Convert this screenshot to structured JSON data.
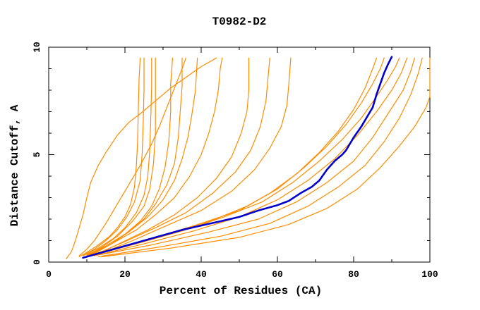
{
  "window": {
    "background": "#FFFFFF"
  },
  "chart_data": {
    "type": "line",
    "title": "T0982-D2",
    "xlabel": "Percent of Residues (CA)",
    "ylabel": "Distance Cutoff, A",
    "xlim": [
      0,
      100
    ],
    "ylim": [
      0,
      10
    ],
    "x_major_ticks": [
      0,
      20,
      40,
      60,
      80,
      100
    ],
    "x_minor_ticks": [
      10,
      30,
      50,
      70,
      90
    ],
    "y_major_ticks": [
      0,
      5,
      10
    ],
    "y_minor_ticks": [
      1,
      2,
      3,
      4,
      6,
      7,
      8,
      9
    ],
    "grid": false,
    "legend_position": "none",
    "frame_color": "#000000",
    "model_line_color": "#FF8C00",
    "highlight_line_color": "#0000CD",
    "series": [
      {
        "name": "highlighted-model",
        "color": "#0000CD",
        "width": 2.6,
        "points": [
          [
            9,
            0.2
          ],
          [
            12,
            0.35
          ],
          [
            16,
            0.55
          ],
          [
            20,
            0.75
          ],
          [
            25,
            1.0
          ],
          [
            30,
            1.25
          ],
          [
            35,
            1.5
          ],
          [
            40,
            1.7
          ],
          [
            45,
            1.9
          ],
          [
            50,
            2.1
          ],
          [
            55,
            2.4
          ],
          [
            60,
            2.65
          ],
          [
            63,
            2.85
          ],
          [
            66,
            3.2
          ],
          [
            69,
            3.5
          ],
          [
            71,
            3.8
          ],
          [
            73,
            4.3
          ],
          [
            75,
            4.7
          ],
          [
            77,
            5.0
          ],
          [
            78,
            5.2
          ],
          [
            80,
            5.8
          ],
          [
            82,
            6.3
          ],
          [
            84,
            6.9
          ],
          [
            85,
            7.2
          ],
          [
            86,
            7.8
          ],
          [
            87,
            8.3
          ],
          [
            88,
            8.8
          ],
          [
            89,
            9.2
          ],
          [
            90,
            9.55
          ]
        ]
      },
      {
        "name": "line-01",
        "color": "#FF8C00",
        "width": 1.2,
        "points": [
          [
            4.6,
            0.15
          ],
          [
            6,
            0.5
          ],
          [
            7,
            1.0
          ],
          [
            8,
            1.6
          ],
          [
            9,
            2.2
          ],
          [
            10,
            3.0
          ],
          [
            11,
            3.7
          ],
          [
            13,
            4.5
          ],
          [
            15,
            5.1
          ],
          [
            18,
            5.9
          ],
          [
            21,
            6.5
          ],
          [
            24,
            6.9
          ],
          [
            28,
            7.5
          ],
          [
            32,
            8.1
          ],
          [
            36,
            8.6
          ],
          [
            40,
            9.1
          ],
          [
            44,
            9.5
          ]
        ]
      },
      {
        "name": "line-02",
        "color": "#FF8C00",
        "width": 1.2,
        "points": [
          [
            8,
            0.25
          ],
          [
            10,
            0.45
          ],
          [
            13,
            0.8
          ],
          [
            16,
            1.2
          ],
          [
            18,
            1.6
          ],
          [
            20,
            2.1
          ],
          [
            21.5,
            2.7
          ],
          [
            22.5,
            3.5
          ],
          [
            23,
            4.5
          ],
          [
            23.3,
            5.5
          ],
          [
            23.5,
            7.0
          ],
          [
            23.7,
            8.5
          ],
          [
            24,
            9.5
          ]
        ]
      },
      {
        "name": "line-03",
        "color": "#FF8C00",
        "width": 1.2,
        "points": [
          [
            9,
            0.3
          ],
          [
            12,
            0.6
          ],
          [
            15,
            1.0
          ],
          [
            18,
            1.5
          ],
          [
            20.5,
            2.1
          ],
          [
            22.5,
            2.8
          ],
          [
            24,
            3.8
          ],
          [
            24.5,
            5.0
          ],
          [
            24.8,
            6.5
          ],
          [
            25,
            8.0
          ],
          [
            25,
            9.5
          ]
        ]
      },
      {
        "name": "line-04",
        "color": "#FF8C00",
        "width": 1.2,
        "points": [
          [
            9,
            0.3
          ],
          [
            13,
            0.65
          ],
          [
            17,
            1.1
          ],
          [
            20,
            1.6
          ],
          [
            23,
            2.3
          ],
          [
            25,
            3.1
          ],
          [
            26,
            4.0
          ],
          [
            26.5,
            5.2
          ],
          [
            26.8,
            6.8
          ],
          [
            27,
            8.2
          ],
          [
            27,
            9.5
          ]
        ]
      },
      {
        "name": "line-05",
        "color": "#FF8C00",
        "width": 1.2,
        "points": [
          [
            10,
            0.3
          ],
          [
            14,
            0.7
          ],
          [
            18,
            1.2
          ],
          [
            22,
            1.9
          ],
          [
            25,
            2.6
          ],
          [
            26.5,
            3.4
          ],
          [
            27.5,
            4.6
          ],
          [
            28,
            6.0
          ],
          [
            28,
            7.5
          ],
          [
            28,
            9.5
          ]
        ]
      },
      {
        "name": "line-06",
        "color": "#FF8C00",
        "width": 1.2,
        "points": [
          [
            10,
            0.3
          ],
          [
            15,
            0.75
          ],
          [
            20,
            1.3
          ],
          [
            24,
            1.9
          ],
          [
            27,
            2.6
          ],
          [
            29,
            3.4
          ],
          [
            30.5,
            4.4
          ],
          [
            31.5,
            5.6
          ],
          [
            32,
            7.0
          ],
          [
            32,
            8.3
          ],
          [
            32.5,
            9.5
          ]
        ]
      },
      {
        "name": "line-07",
        "color": "#FF8C00",
        "width": 1.2,
        "points": [
          [
            10,
            0.35
          ],
          [
            16,
            0.8
          ],
          [
            21,
            1.4
          ],
          [
            25,
            2.0
          ],
          [
            28,
            2.7
          ],
          [
            31,
            3.6
          ],
          [
            33,
            4.6
          ],
          [
            34,
            5.8
          ],
          [
            34.5,
            7.0
          ],
          [
            35,
            8.2
          ],
          [
            35,
            9.5
          ]
        ]
      },
      {
        "name": "line-08",
        "color": "#FF8C00",
        "width": 1.2,
        "points": [
          [
            8,
            0.3
          ],
          [
            10,
            0.6
          ],
          [
            12,
            1.0
          ],
          [
            15,
            1.8
          ],
          [
            18,
            2.7
          ],
          [
            21,
            3.6
          ],
          [
            24,
            4.5
          ],
          [
            27,
            5.5
          ],
          [
            29,
            6.3
          ],
          [
            31,
            7.2
          ],
          [
            33,
            8.1
          ],
          [
            35,
            9.0
          ],
          [
            36,
            9.5
          ]
        ]
      },
      {
        "name": "line-09",
        "color": "#FF8C00",
        "width": 1.2,
        "points": [
          [
            11,
            0.3
          ],
          [
            16,
            0.8
          ],
          [
            21,
            1.4
          ],
          [
            26,
            2.1
          ],
          [
            30,
            2.9
          ],
          [
            33,
            3.8
          ],
          [
            35,
            4.8
          ],
          [
            36.5,
            5.8
          ],
          [
            37.5,
            6.8
          ],
          [
            38.5,
            8.0
          ],
          [
            39,
            9.5
          ]
        ]
      },
      {
        "name": "line-10",
        "color": "#FF8C00",
        "width": 1.2,
        "points": [
          [
            11,
            0.35
          ],
          [
            17,
            0.9
          ],
          [
            23,
            1.5
          ],
          [
            28,
            2.2
          ],
          [
            33,
            3.0
          ],
          [
            37,
            4.0
          ],
          [
            40,
            5.0
          ],
          [
            42,
            6.0
          ],
          [
            43.5,
            7.0
          ],
          [
            44.5,
            8.0
          ],
          [
            45,
            9.0
          ],
          [
            45.5,
            9.5
          ]
        ]
      },
      {
        "name": "line-11",
        "color": "#FF8C00",
        "width": 1.2,
        "points": [
          [
            12,
            0.3
          ],
          [
            19,
            0.9
          ],
          [
            26,
            1.5
          ],
          [
            33,
            2.2
          ],
          [
            39,
            3.0
          ],
          [
            44,
            3.9
          ],
          [
            48,
            4.9
          ],
          [
            50.5,
            6.0
          ],
          [
            52,
            7.0
          ],
          [
            52.5,
            8.0
          ],
          [
            52.5,
            9.5
          ]
        ]
      },
      {
        "name": "line-12",
        "color": "#FF8C00",
        "width": 1.2,
        "points": [
          [
            12,
            0.35
          ],
          [
            20,
            0.95
          ],
          [
            28,
            1.6
          ],
          [
            36,
            2.3
          ],
          [
            43,
            3.2
          ],
          [
            49,
            4.2
          ],
          [
            53,
            5.2
          ],
          [
            55.5,
            6.3
          ],
          [
            57,
            7.5
          ],
          [
            57.5,
            8.5
          ],
          [
            58,
            9.5
          ]
        ]
      },
      {
        "name": "line-13",
        "color": "#FF8C00",
        "width": 1.2,
        "points": [
          [
            13,
            0.35
          ],
          [
            22,
            1.0
          ],
          [
            31,
            1.7
          ],
          [
            40,
            2.4
          ],
          [
            48,
            3.3
          ],
          [
            54,
            4.3
          ],
          [
            58,
            5.3
          ],
          [
            61,
            6.3
          ],
          [
            62.5,
            7.3
          ],
          [
            63,
            8.3
          ],
          [
            63.5,
            9.5
          ]
        ]
      },
      {
        "name": "line-14",
        "color": "#FF8C00",
        "width": 1.2,
        "points": [
          [
            10,
            0.3
          ],
          [
            20,
            0.75
          ],
          [
            30,
            1.25
          ],
          [
            40,
            1.8
          ],
          [
            50,
            2.4
          ],
          [
            58,
            3.2
          ],
          [
            65,
            4.1
          ],
          [
            71,
            5.1
          ],
          [
            76,
            6.1
          ],
          [
            80,
            7.1
          ],
          [
            83,
            8.1
          ],
          [
            85,
            9.0
          ],
          [
            86,
            9.5
          ]
        ]
      },
      {
        "name": "line-15",
        "color": "#FF8C00",
        "width": 1.2,
        "points": [
          [
            10,
            0.3
          ],
          [
            21,
            0.8
          ],
          [
            32,
            1.35
          ],
          [
            43,
            1.95
          ],
          [
            52,
            2.6
          ],
          [
            60,
            3.4
          ],
          [
            67,
            4.4
          ],
          [
            73,
            5.4
          ],
          [
            78,
            6.4
          ],
          [
            82,
            7.4
          ],
          [
            85,
            8.3
          ],
          [
            87,
            9.0
          ],
          [
            88,
            9.5
          ]
        ]
      },
      {
        "name": "line-16",
        "color": "#FF8C00",
        "width": 1.2,
        "points": [
          [
            11,
            0.3
          ],
          [
            23,
            0.85
          ],
          [
            35,
            1.45
          ],
          [
            46,
            2.1
          ],
          [
            56,
            2.8
          ],
          [
            64,
            3.7
          ],
          [
            71,
            4.7
          ],
          [
            77,
            5.7
          ],
          [
            82,
            6.7
          ],
          [
            86,
            7.7
          ],
          [
            89,
            8.5
          ],
          [
            91,
            9.1
          ],
          [
            92,
            9.5
          ]
        ]
      },
      {
        "name": "line-17",
        "color": "#FF8C00",
        "width": 1.2,
        "points": [
          [
            12,
            0.3
          ],
          [
            25,
            0.85
          ],
          [
            38,
            1.45
          ],
          [
            50,
            2.1
          ],
          [
            60,
            2.9
          ],
          [
            68,
            3.8
          ],
          [
            75,
            4.8
          ],
          [
            81,
            5.9
          ],
          [
            86,
            7.0
          ],
          [
            90,
            8.0
          ],
          [
            92.5,
            8.8
          ],
          [
            94,
            9.5
          ]
        ]
      },
      {
        "name": "line-18",
        "color": "#FF8C00",
        "width": 1.2,
        "points": [
          [
            12,
            0.3
          ],
          [
            27,
            0.8
          ],
          [
            42,
            1.4
          ],
          [
            55,
            2.0
          ],
          [
            65,
            2.8
          ],
          [
            73,
            3.7
          ],
          [
            80,
            4.7
          ],
          [
            85,
            5.8
          ],
          [
            89,
            6.9
          ],
          [
            93,
            8.0
          ],
          [
            95,
            8.9
          ],
          [
            96,
            9.5
          ]
        ]
      },
      {
        "name": "line-19",
        "color": "#FF8C00",
        "width": 1.2,
        "points": [
          [
            13,
            0.25
          ],
          [
            29,
            0.7
          ],
          [
            45,
            1.2
          ],
          [
            58,
            1.8
          ],
          [
            68,
            2.6
          ],
          [
            76,
            3.5
          ],
          [
            83,
            4.5
          ],
          [
            88,
            5.6
          ],
          [
            92,
            6.7
          ],
          [
            95,
            7.8
          ],
          [
            97,
            8.8
          ],
          [
            98,
            9.5
          ]
        ]
      },
      {
        "name": "line-20",
        "color": "#FF8C00",
        "width": 1.2,
        "points": [
          [
            14,
            0.25
          ],
          [
            32,
            0.65
          ],
          [
            50,
            1.15
          ],
          [
            63,
            1.75
          ],
          [
            73,
            2.5
          ],
          [
            81,
            3.4
          ],
          [
            87,
            4.4
          ],
          [
            92,
            5.4
          ],
          [
            96,
            6.3
          ],
          [
            99,
            7.2
          ],
          [
            100,
            7.7
          ],
          [
            100,
            9.5
          ]
        ]
      }
    ]
  }
}
